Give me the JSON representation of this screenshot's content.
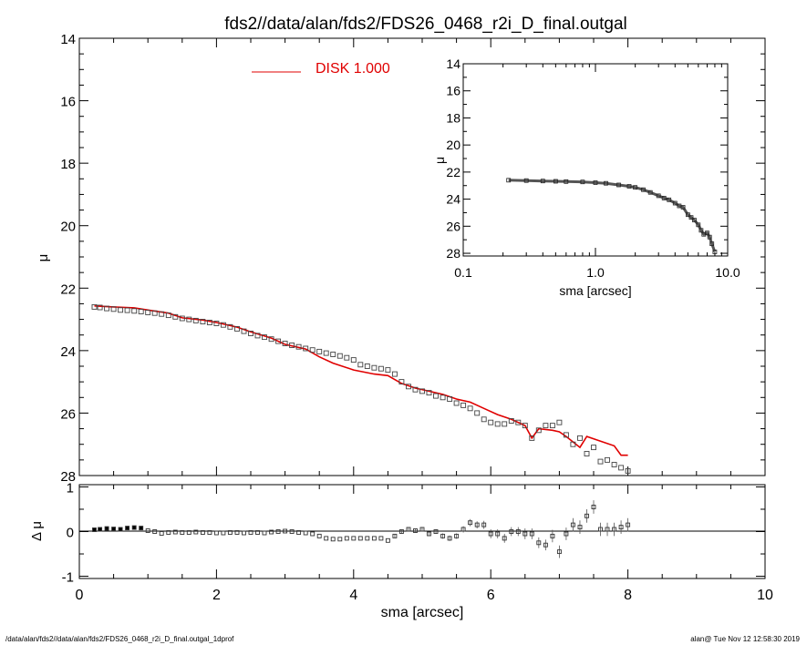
{
  "title": "fds2//data/alan/fds2/FDS26_0468_r2i_D_final.outgal",
  "footer": {
    "left": "/data/alan/fds2//data/alan/fds2/FDS26_0468_r2i_D_final.outgal_1dprof",
    "right": "alan@  Tue Nov 12 12:58:30 2019"
  },
  "colors": {
    "model": "#e00000",
    "data": "#000000",
    "axes": "#000000"
  },
  "chart_data": [
    {
      "name": "main-profile",
      "type": "scatter",
      "xlabel": "",
      "ylabel": "μ",
      "xlim": [
        0,
        10
      ],
      "ylim": [
        28,
        14
      ],
      "y_inverted": true,
      "xticks": [
        0,
        2,
        4,
        6,
        8,
        10
      ],
      "yticks": [
        14,
        16,
        18,
        20,
        22,
        24,
        26,
        28
      ],
      "yticklabels": [
        "14",
        "16",
        "18",
        "20",
        "22",
        "24",
        "26",
        "28"
      ],
      "legend": {
        "label": "DISK  1.000",
        "placement": "top-center"
      },
      "series": [
        {
          "name": "data",
          "style": "squares",
          "x": [
            0.22,
            0.3,
            0.4,
            0.5,
            0.6,
            0.7,
            0.8,
            0.9,
            1.0,
            1.1,
            1.2,
            1.3,
            1.4,
            1.5,
            1.6,
            1.7,
            1.8,
            1.9,
            2.0,
            2.1,
            2.2,
            2.3,
            2.4,
            2.5,
            2.6,
            2.7,
            2.8,
            2.9,
            3.0,
            3.1,
            3.2,
            3.3,
            3.4,
            3.5,
            3.6,
            3.7,
            3.8,
            3.9,
            4.0,
            4.1,
            4.2,
            4.3,
            4.4,
            4.5,
            4.6,
            4.7,
            4.8,
            4.9,
            5.0,
            5.1,
            5.2,
            5.3,
            5.4,
            5.5,
            5.6,
            5.7,
            5.8,
            5.9,
            6.0,
            6.1,
            6.2,
            6.3,
            6.4,
            6.5,
            6.6,
            6.7,
            6.8,
            6.9,
            7.0,
            7.1,
            7.2,
            7.3,
            7.4,
            7.5,
            7.6,
            7.7,
            7.8,
            7.9,
            8.0
          ],
          "y": [
            22.6,
            22.62,
            22.65,
            22.67,
            22.7,
            22.71,
            22.73,
            22.75,
            22.78,
            22.8,
            22.83,
            22.87,
            22.92,
            22.97,
            23.0,
            23.04,
            23.07,
            23.1,
            23.13,
            23.18,
            23.24,
            23.3,
            23.38,
            23.45,
            23.52,
            23.57,
            23.63,
            23.7,
            23.77,
            23.83,
            23.88,
            23.93,
            23.98,
            24.03,
            24.08,
            24.12,
            24.17,
            24.23,
            24.3,
            24.45,
            24.5,
            24.55,
            24.58,
            24.62,
            24.75,
            25.0,
            25.15,
            25.25,
            25.3,
            25.35,
            25.45,
            25.5,
            25.55,
            25.68,
            25.75,
            25.85,
            26.0,
            26.2,
            26.3,
            26.35,
            26.35,
            26.25,
            26.3,
            26.4,
            26.8,
            26.55,
            26.4,
            26.4,
            26.3,
            26.7,
            27.0,
            26.8,
            27.3,
            27.1,
            27.55,
            27.5,
            27.65,
            27.75,
            27.85
          ]
        },
        {
          "name": "DISK  1.000",
          "style": "line",
          "x": [
            0.22,
            0.5,
            0.8,
            1.0,
            1.3,
            1.5,
            1.8,
            2.0,
            2.3,
            2.5,
            2.8,
            3.0,
            3.3,
            3.5,
            3.7,
            4.0,
            4.3,
            4.5,
            4.7,
            4.9,
            5.1,
            5.3,
            5.5,
            5.7,
            5.9,
            6.1,
            6.3,
            6.5,
            6.6,
            6.7,
            6.9,
            7.0,
            7.1,
            7.3,
            7.4,
            7.6,
            7.8,
            7.9,
            8.0
          ],
          "y": [
            22.57,
            22.6,
            22.63,
            22.7,
            22.8,
            22.95,
            23.02,
            23.1,
            23.25,
            23.4,
            23.6,
            23.8,
            23.95,
            24.2,
            24.4,
            24.62,
            24.75,
            24.8,
            25.05,
            25.2,
            25.3,
            25.4,
            25.55,
            25.65,
            25.85,
            26.05,
            26.2,
            26.4,
            26.8,
            26.5,
            26.55,
            26.6,
            26.75,
            27.1,
            26.75,
            26.9,
            27.05,
            27.35,
            27.35
          ]
        }
      ]
    },
    {
      "name": "residual",
      "type": "scatter",
      "xlabel": "sma [arcsec]",
      "ylabel": "Δ μ",
      "xlim": [
        0,
        10
      ],
      "ylim": [
        -1.05,
        1.05
      ],
      "xticks": [
        0,
        2,
        4,
        6,
        8,
        10
      ],
      "xticklabels": [
        "0",
        "2",
        "4",
        "6",
        "8",
        "10"
      ],
      "yticks": [
        -1,
        0,
        1
      ],
      "yticklabels": [
        "-1",
        "0",
        "1"
      ],
      "zero_line": true,
      "series": [
        {
          "name": "residual",
          "x": [
            0.22,
            0.3,
            0.4,
            0.5,
            0.6,
            0.7,
            0.8,
            0.9,
            1.0,
            1.1,
            1.2,
            1.3,
            1.4,
            1.5,
            1.6,
            1.7,
            1.8,
            1.9,
            2.0,
            2.1,
            2.2,
            2.3,
            2.4,
            2.5,
            2.6,
            2.7,
            2.8,
            2.9,
            3.0,
            3.1,
            3.2,
            3.3,
            3.4,
            3.5,
            3.6,
            3.7,
            3.8,
            3.9,
            4.0,
            4.1,
            4.2,
            4.3,
            4.4,
            4.5,
            4.6,
            4.7,
            4.8,
            4.9,
            5.0,
            5.1,
            5.2,
            5.3,
            5.4,
            5.5,
            5.6,
            5.7,
            5.8,
            5.9,
            6.0,
            6.1,
            6.2,
            6.3,
            6.4,
            6.5,
            6.6,
            6.7,
            6.8,
            6.9,
            7.0,
            7.1,
            7.2,
            7.3,
            7.4,
            7.5,
            7.6,
            7.7,
            7.8,
            7.9,
            8.0
          ],
          "y": [
            0.04,
            0.05,
            0.07,
            0.06,
            0.05,
            0.08,
            0.09,
            0.08,
            0.02,
            0.0,
            -0.04,
            -0.02,
            -0.01,
            -0.02,
            -0.02,
            -0.01,
            -0.02,
            -0.02,
            -0.03,
            -0.03,
            -0.02,
            -0.02,
            -0.03,
            -0.02,
            -0.02,
            -0.03,
            -0.01,
            0.0,
            0.01,
            0.0,
            -0.02,
            -0.03,
            -0.05,
            -0.1,
            -0.15,
            -0.17,
            -0.17,
            -0.15,
            -0.15,
            -0.15,
            -0.15,
            -0.15,
            -0.15,
            -0.2,
            -0.1,
            0.0,
            0.05,
            0.02,
            0.05,
            -0.05,
            0.0,
            -0.1,
            -0.15,
            -0.1,
            0.05,
            0.2,
            0.15,
            0.15,
            -0.05,
            -0.05,
            -0.15,
            0.0,
            0.0,
            -0.05,
            -0.05,
            -0.25,
            -0.3,
            -0.1,
            -0.45,
            -0.05,
            0.15,
            0.1,
            0.35,
            0.55,
            0.05,
            0.05,
            0.05,
            0.1,
            0.15
          ],
          "err": [
            0.02,
            0.02,
            0.02,
            0.02,
            0.02,
            0.02,
            0.02,
            0.02,
            0.02,
            0.02,
            0.02,
            0.02,
            0.02,
            0.02,
            0.02,
            0.02,
            0.02,
            0.02,
            0.02,
            0.02,
            0.02,
            0.02,
            0.02,
            0.02,
            0.02,
            0.02,
            0.02,
            0.02,
            0.02,
            0.02,
            0.02,
            0.02,
            0.02,
            0.03,
            0.03,
            0.03,
            0.03,
            0.03,
            0.03,
            0.03,
            0.03,
            0.03,
            0.03,
            0.03,
            0.04,
            0.04,
            0.04,
            0.04,
            0.05,
            0.05,
            0.05,
            0.06,
            0.06,
            0.06,
            0.07,
            0.08,
            0.08,
            0.09,
            0.1,
            0.1,
            0.1,
            0.1,
            0.1,
            0.12,
            0.12,
            0.12,
            0.12,
            0.14,
            0.14,
            0.14,
            0.15,
            0.15,
            0.15,
            0.15,
            0.15,
            0.15,
            0.15,
            0.15,
            0.15
          ]
        }
      ]
    },
    {
      "name": "inset-log-profile",
      "type": "scatter",
      "xlabel": "sma [arcsec]",
      "ylabel": "μ",
      "xscale": "log",
      "xlim": [
        0.1,
        10
      ],
      "ylim": [
        28.2,
        14
      ],
      "y_inverted": true,
      "xticks": [
        0.1,
        1.0,
        10.0
      ],
      "xticklabels": [
        "0.1",
        "1.0",
        "10.0"
      ],
      "yticks": [
        14,
        16,
        18,
        20,
        22,
        24,
        26,
        28
      ],
      "yticklabels": [
        "14",
        "16",
        "18",
        "20",
        "22",
        "24",
        "26",
        "28"
      ],
      "series": [
        {
          "name": "data",
          "x": [
            0.22,
            0.3,
            0.4,
            0.5,
            0.6,
            0.8,
            1.0,
            1.2,
            1.5,
            1.8,
            2.0,
            2.3,
            2.6,
            3.0,
            3.3,
            3.6,
            4.0,
            4.3,
            4.6,
            5.0,
            5.3,
            5.6,
            6.0,
            6.3,
            6.6,
            7.0,
            7.3,
            7.6,
            8.0
          ],
          "y": [
            22.6,
            22.63,
            22.66,
            22.68,
            22.7,
            22.73,
            22.78,
            22.83,
            22.95,
            23.05,
            23.13,
            23.3,
            23.5,
            23.75,
            23.92,
            24.05,
            24.3,
            24.5,
            24.6,
            25.15,
            25.35,
            25.55,
            25.9,
            26.3,
            26.6,
            26.5,
            26.8,
            27.3,
            27.9
          ]
        }
      ]
    }
  ]
}
